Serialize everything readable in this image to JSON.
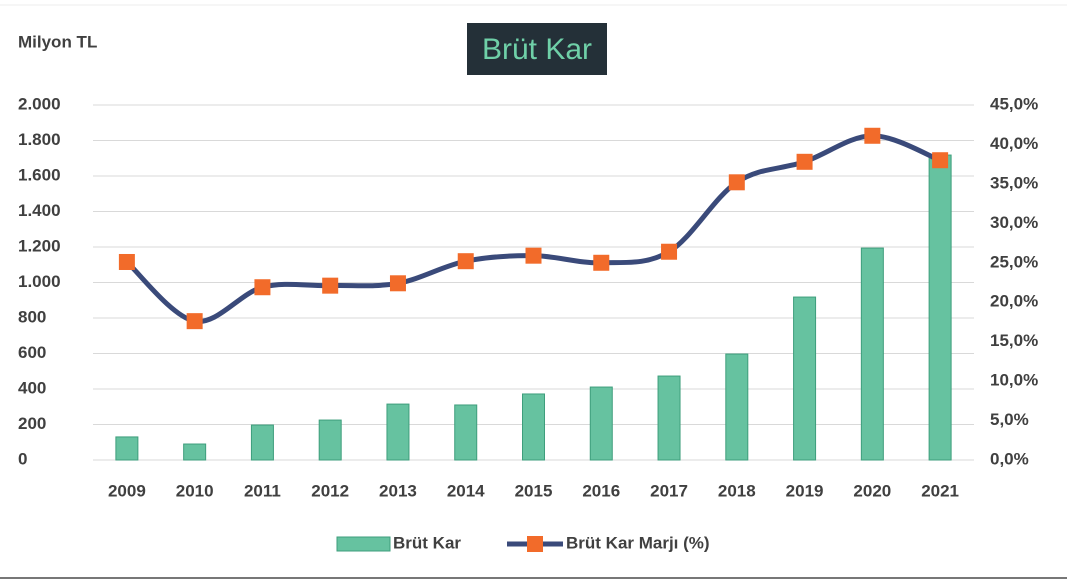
{
  "chart_data": {
    "type": "bar_line",
    "title": "Brüt Kar",
    "y_label": "Milyon TL",
    "categories": [
      "2009",
      "2010",
      "2011",
      "2012",
      "2013",
      "2014",
      "2015",
      "2016",
      "2017",
      "2018",
      "2019",
      "2020",
      "2021"
    ],
    "series": [
      {
        "name": "Brüt Kar",
        "type": "bar",
        "color": "#66c2a0",
        "values": [
          130,
          90,
          197,
          225,
          315,
          310,
          372,
          411,
          473,
          597,
          918,
          1194,
          1718
        ]
      },
      {
        "name": "Brüt Kar Marjı (%)",
        "type": "line",
        "axis": "y2",
        "color": "#3a4a7a",
        "marker_color": "#f26b2a",
        "values": [
          25.1,
          17.6,
          21.9,
          22.1,
          22.4,
          25.2,
          25.9,
          25.0,
          26.4,
          35.2,
          37.8,
          41.1,
          38.0
        ]
      }
    ],
    "ylim": [
      0,
      2000
    ],
    "yticks": [
      0,
      200,
      400,
      600,
      800,
      {
        "value": 1000,
        "label": "1.000"
      },
      {
        "value": 1200,
        "label": "1.200"
      },
      {
        "value": 1400,
        "label": "1.400"
      },
      {
        "value": 1600,
        "label": "1.600"
      },
      {
        "value": 1800,
        "label": "1.800"
      },
      {
        "value": 2000,
        "label": "2.000"
      }
    ],
    "y2lim": [
      0,
      45
    ],
    "y2ticks": [
      {
        "value": 0,
        "label": "0,0%"
      },
      {
        "value": 5,
        "label": "5,0%"
      },
      {
        "value": 10,
        "label": "10,0%"
      },
      {
        "value": 15,
        "label": "15,0%"
      },
      {
        "value": 20,
        "label": "20,0%"
      },
      {
        "value": 25,
        "label": "25,0%"
      },
      {
        "value": 30,
        "label": "30,0%"
      },
      {
        "value": 35,
        "label": "35,0%"
      },
      {
        "value": 40,
        "label": "40,0%"
      },
      {
        "value": 45,
        "label": "45,0%"
      }
    ],
    "grid": true,
    "legend": "bottom"
  }
}
